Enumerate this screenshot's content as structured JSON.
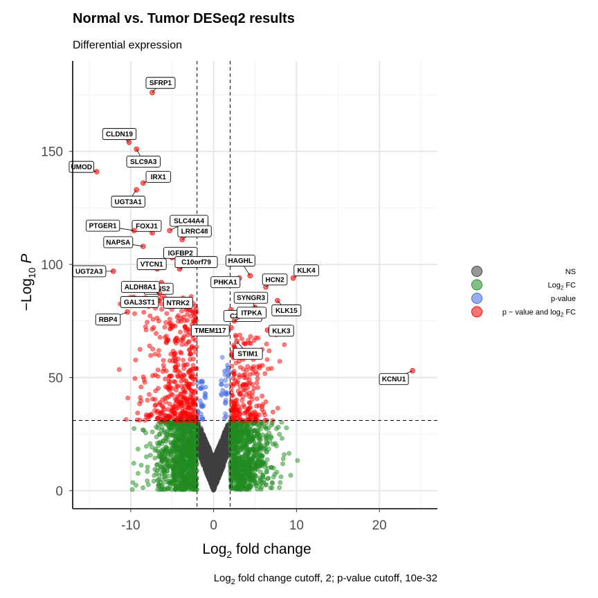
{
  "chart_data": {
    "type": "scatter",
    "title": "Normal vs. Tumor DESeq2 results",
    "subtitle": "Differential expression",
    "xlabel": "Log",
    "xlabel_sub": "2",
    "xlabel_rest": " fold change",
    "ylabel_neg": "−Log",
    "ylabel_sub": "10",
    "ylabel_var": " P",
    "caption_pre": "Log",
    "caption_sub": "2",
    "caption_post": " fold change cutoff, 2; p-value cutoff, 10e-32",
    "xlim": [
      -17,
      27
    ],
    "ylim": [
      -8,
      190
    ],
    "x_ticks": [
      -10,
      0,
      10,
      20
    ],
    "x_tick_labels": [
      "-10",
      "0",
      "10",
      "20"
    ],
    "y_ticks": [
      0,
      50,
      100,
      150
    ],
    "y_tick_labels": [
      "0",
      "50",
      "100",
      "150"
    ],
    "fc_cutoff": 2,
    "p_cutoff_neglog10": 31,
    "grid": true,
    "legend_position": "right",
    "legend": [
      {
        "key": "ns",
        "color": "#404040",
        "label": "NS"
      },
      {
        "key": "fc",
        "color": "#228b22",
        "label_pre": "Log",
        "label_sub": "2",
        "label_post": " FC"
      },
      {
        "key": "p",
        "color": "#4169e1",
        "label": "p-value"
      },
      {
        "key": "both",
        "color": "#ff0000",
        "label_pre": "p − value and log",
        "label_sub": "2",
        "label_post": " FC"
      }
    ],
    "labeled_genes": [
      {
        "gene": "SFRP1",
        "x": -7.4,
        "y": 176
      },
      {
        "gene": "CLDN19",
        "x": -10.2,
        "y": 154
      },
      {
        "gene": "SLC9A3",
        "x": -9.3,
        "y": 151
      },
      {
        "gene": "UMOD",
        "x": -14.1,
        "y": 141
      },
      {
        "gene": "IRX1",
        "x": -8.5,
        "y": 136
      },
      {
        "gene": "UGT3A1",
        "x": -9.3,
        "y": 133
      },
      {
        "gene": "SLC44A4",
        "x": -5.3,
        "y": 115
      },
      {
        "gene": "FOXJ1",
        "x": -7.4,
        "y": 114
      },
      {
        "gene": "PTGER1",
        "x": -9.6,
        "y": 115
      },
      {
        "gene": "LRRC48",
        "x": -3.8,
        "y": 111
      },
      {
        "gene": "NAPSA",
        "x": -8.5,
        "y": 108
      },
      {
        "gene": "IGFBP2",
        "x": -5.0,
        "y": 103
      },
      {
        "gene": "C10orf79",
        "x": -4.1,
        "y": 98
      },
      {
        "gene": "VTCN1",
        "x": -6.8,
        "y": 98
      },
      {
        "gene": "UGT2A3",
        "x": -12.1,
        "y": 97
      },
      {
        "gene": "HAGHL",
        "x": 4.4,
        "y": 95
      },
      {
        "gene": "KLK4",
        "x": 9.6,
        "y": 94
      },
      {
        "gene": "PHKA1",
        "x": 3.1,
        "y": 94
      },
      {
        "gene": "HCN2",
        "x": 6.3,
        "y": 90
      },
      {
        "gene": "SPNS2",
        "x": -6.3,
        "y": 92
      },
      {
        "gene": "ALDH8A1",
        "x": -6.5,
        "y": 87
      },
      {
        "gene": "SYNGR3",
        "x": 5.0,
        "y": 81
      },
      {
        "gene": "C2orf81",
        "x": 2.1,
        "y": 80
      },
      {
        "gene": "RBP4",
        "x": -10.4,
        "y": 79
      },
      {
        "gene": "GAL3ST1",
        "x": -6.6,
        "y": 84
      },
      {
        "gene": "NTRK2",
        "x": -5.2,
        "y": 84
      },
      {
        "gene": "KLK15",
        "x": 7.7,
        "y": 84
      },
      {
        "gene": "ITPKA",
        "x": 2.5,
        "y": 75
      },
      {
        "gene": "KLK3",
        "x": 6.5,
        "y": 71
      },
      {
        "gene": "TMEM117",
        "x": 2.1,
        "y": 72
      },
      {
        "gene": "STIM1",
        "x": 2.8,
        "y": 66
      },
      {
        "gene": "KCNU1",
        "x": 24.0,
        "y": 53
      }
    ]
  }
}
